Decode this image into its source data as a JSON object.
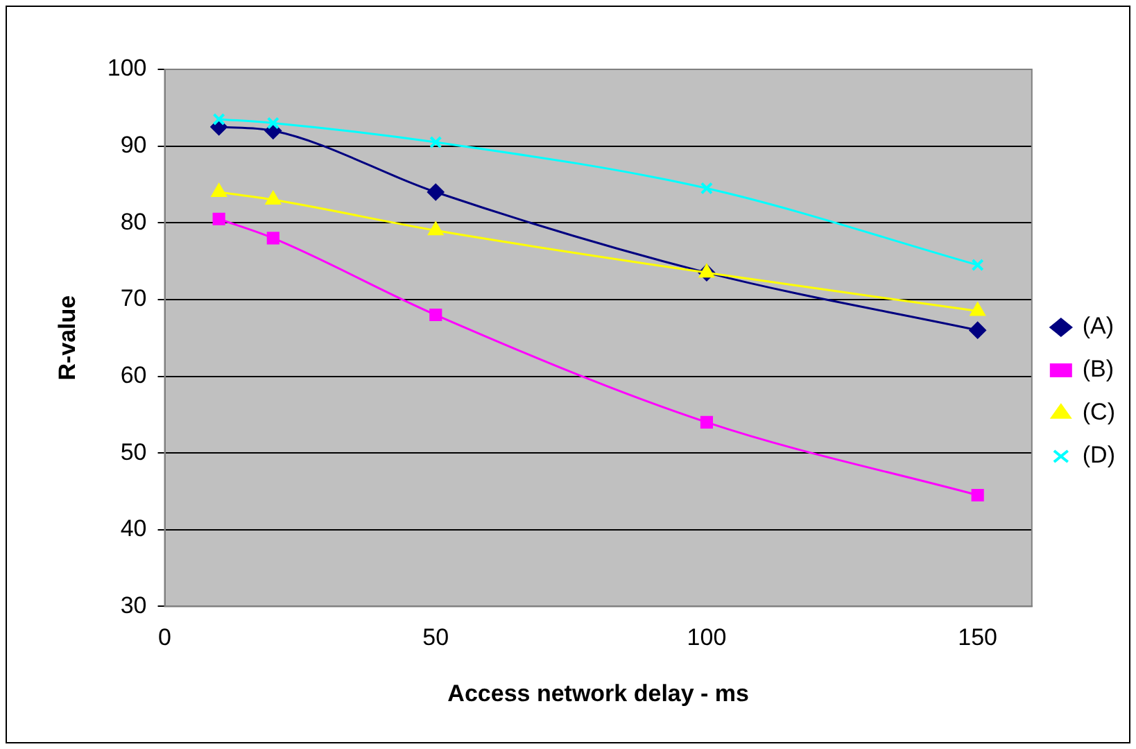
{
  "chart_data": {
    "type": "line",
    "xlabel": "Access network delay - ms",
    "ylabel": "R-value",
    "x": [
      10,
      20,
      50,
      100,
      150
    ],
    "series": [
      {
        "name": "(A)",
        "color": "#000080",
        "marker": "diamond",
        "values": [
          92.5,
          92,
          84,
          73.5,
          66
        ]
      },
      {
        "name": "(B)",
        "color": "#ff00ff",
        "marker": "square",
        "values": [
          80.5,
          78,
          68,
          54,
          44.5
        ]
      },
      {
        "name": "(C)",
        "color": "#ffff00",
        "marker": "triangle",
        "values": [
          84,
          83,
          79,
          73.5,
          68.5
        ]
      },
      {
        "name": "(D)",
        "color": "#00ffff",
        "marker": "cross",
        "values": [
          93.5,
          93,
          90.5,
          84.5,
          74.5
        ]
      }
    ],
    "xlim": [
      0,
      160
    ],
    "xticks": [
      0,
      50,
      100,
      150
    ],
    "ylim": [
      30,
      100
    ],
    "yticks": [
      30,
      40,
      50,
      60,
      70,
      80,
      90,
      100
    ],
    "grid": "y",
    "legend": "right",
    "line_style": "solid"
  }
}
